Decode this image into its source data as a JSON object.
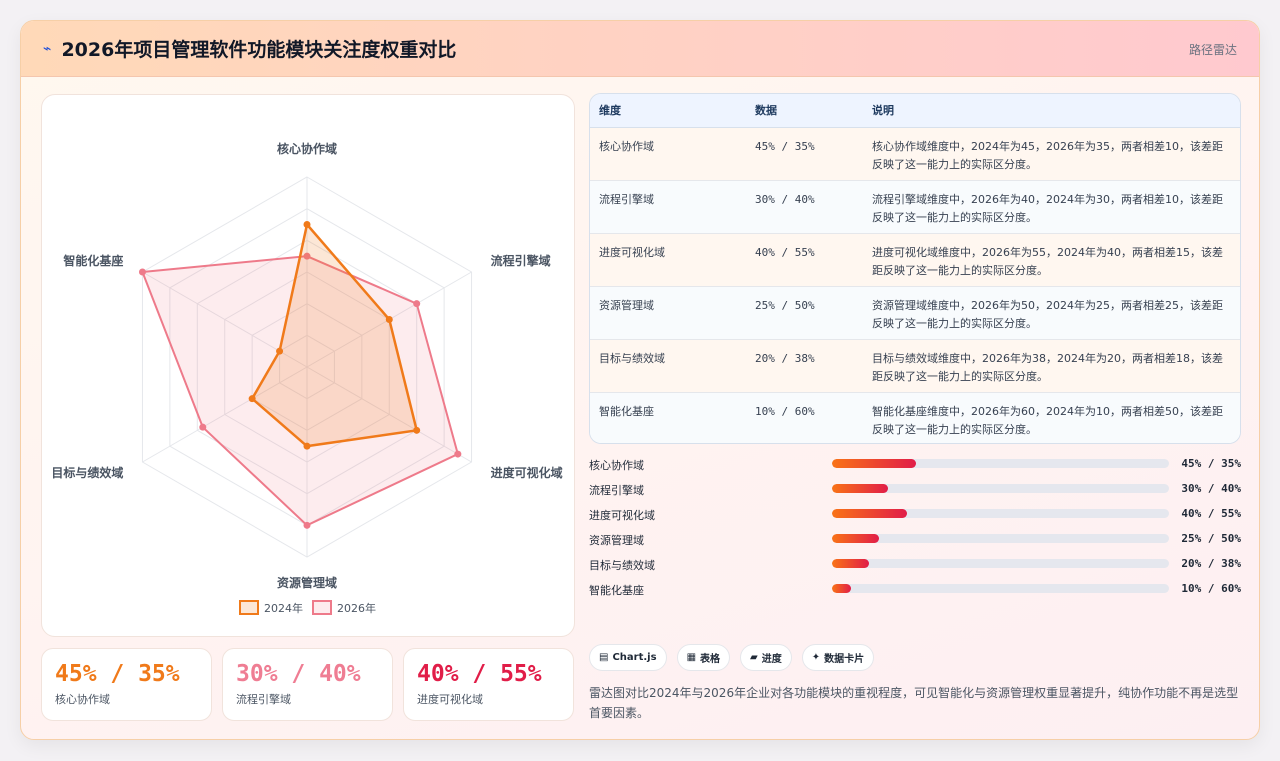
{
  "header": {
    "icon": "chart-icon",
    "title": "2026年项目管理软件功能模块关注度权重对比",
    "chart_type_label": "路径雷达"
  },
  "chart_data": {
    "type": "radar",
    "title": "2026年项目管理软件功能模块关注度权重对比",
    "axes": [
      "核心协作域",
      "流程引擎域",
      "进度可视化域",
      "资源管理域",
      "目标与绩效域",
      "智能化基座"
    ],
    "range": [
      0,
      60
    ],
    "series": [
      {
        "name": "2024年",
        "values": [
          45,
          30,
          40,
          25,
          20,
          10
        ],
        "color": "#f07a1a"
      },
      {
        "name": "2026年",
        "values": [
          35,
          40,
          55,
          50,
          38,
          60
        ],
        "color": "#ee7a8a"
      }
    ],
    "legend_position": "bottom",
    "grid": true
  },
  "kpis": [
    {
      "value": "45% / 35%",
      "label": "核心协作域",
      "color": "#f07a1a"
    },
    {
      "value": "30% / 40%",
      "label": "流程引擎域",
      "color": "#ef7d93"
    },
    {
      "value": "40% / 55%",
      "label": "进度可视化域",
      "color": "#e11d48"
    }
  ],
  "table": {
    "headers": [
      "维度",
      "数据",
      "说明"
    ],
    "rows": [
      {
        "dim": "核心协作域",
        "data": "45% / 35%",
        "note": "核心协作域维度中，2024年为45，2026年为35，两者相差10，该差距反映了这一能力上的实际区分度。"
      },
      {
        "dim": "流程引擎域",
        "data": "30% / 40%",
        "note": "流程引擎域维度中，2026年为40，2024年为30，两者相差10，该差距反映了这一能力上的实际区分度。"
      },
      {
        "dim": "进度可视化域",
        "data": "40% / 55%",
        "note": "进度可视化域维度中，2026年为55，2024年为40，两者相差15，该差距反映了这一能力上的实际区分度。"
      },
      {
        "dim": "资源管理域",
        "data": "25% / 50%",
        "note": "资源管理域维度中，2026年为50，2024年为25，两者相差25，该差距反映了这一能力上的实际区分度。"
      },
      {
        "dim": "目标与绩效域",
        "data": "20% / 38%",
        "note": "目标与绩效域维度中，2026年为38，2024年为20，两者相差18，该差距反映了这一能力上的实际区分度。"
      },
      {
        "dim": "智能化基座",
        "data": "10% / 60%",
        "note": "智能化基座维度中，2026年为60，2024年为10，两者相差50，该差距反映了这一能力上的实际区分度。"
      }
    ]
  },
  "bars": [
    {
      "label": "核心协作域",
      "value_text": "45% / 35%",
      "fill": 0.25
    },
    {
      "label": "流程引擎域",
      "value_text": "30% / 40%",
      "fill": 0.167
    },
    {
      "label": "进度可视化域",
      "value_text": "40% / 55%",
      "fill": 0.222
    },
    {
      "label": "资源管理域",
      "value_text": "25% / 50%",
      "fill": 0.139
    },
    {
      "label": "目标与绩效域",
      "value_text": "20% / 38%",
      "fill": 0.111
    },
    {
      "label": "智能化基座",
      "value_text": "10% / 60%",
      "fill": 0.056
    }
  ],
  "tags": [
    {
      "icon": "chart-bars-icon",
      "glyph": "▤",
      "label": "Chart.js"
    },
    {
      "icon": "table-icon",
      "glyph": "▦",
      "label": "表格"
    },
    {
      "icon": "progress-icon",
      "glyph": "▰",
      "label": "进度"
    },
    {
      "icon": "sparkle-icon",
      "glyph": "✦",
      "label": "数据卡片"
    }
  ],
  "description": "雷达图对比2024年与2026年企业对各功能模块的重视程度，可见智能化与资源管理权重显著提升，纯协作功能不再是选型首要因素。"
}
